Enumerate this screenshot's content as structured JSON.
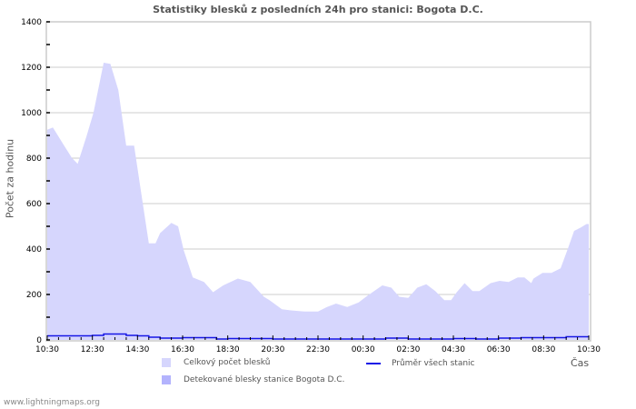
{
  "title": "Statistiky blesků z posledních 24h pro stanici: Bogota D.C.",
  "footer": "www.lightningmaps.org",
  "colors": {
    "total_fill": "#d6d6fd",
    "detected_fill": "#b3b3fd",
    "average_line": "#1515e6",
    "grid": "#cccccc",
    "axis": "#cccccc",
    "text": "#555555"
  },
  "legend": {
    "total": "Celkový počet blesků",
    "detected": "Detekované blesky stanice Bogota D.C.",
    "average": "Průměr všech stanic"
  },
  "chart_data": {
    "type": "area",
    "title": "Statistiky blesků z posledních 24h pro stanici: Bogota D.C.",
    "xlabel": "Čas",
    "ylabel": "Počet za hodinu",
    "ylim": [
      0,
      1400
    ],
    "yticks": [
      0,
      200,
      400,
      600,
      800,
      1000,
      1200,
      1400
    ],
    "xticks": [
      "10:30",
      "12:30",
      "14:30",
      "16:30",
      "18:30",
      "20:30",
      "22:30",
      "00:30",
      "02:30",
      "04:30",
      "06:30",
      "08:30",
      "10:30"
    ],
    "x_hours_span": 24,
    "grid": true,
    "legend_position": "bottom",
    "series": [
      {
        "name": "Celkový počet blesků",
        "type": "area",
        "x_hours": [
          0,
          0.25,
          0.75,
          1.1,
          1.35,
          1.75,
          2.05,
          2.5,
          2.8,
          3.15,
          3.5,
          3.85,
          4.15,
          4.5,
          4.8,
          5.0,
          5.5,
          5.8,
          6.05,
          6.45,
          6.95,
          7.35,
          7.8,
          8.45,
          9.0,
          9.6,
          9.85,
          10.4,
          10.8,
          11.4,
          12.0,
          12.4,
          12.8,
          13.3,
          13.8,
          14.2,
          14.85,
          15.25,
          15.6,
          16.0,
          16.4,
          16.8,
          17.2,
          17.6,
          17.9,
          18.15,
          18.5,
          18.85,
          19.15,
          19.65,
          20.05,
          20.45,
          20.85,
          21.15,
          21.45,
          21.55,
          21.95,
          22.35,
          22.75,
          23.05,
          23.35,
          23.65,
          23.9,
          24.0
        ],
        "values": [
          925,
          935,
          855,
          800,
          775,
          900,
          1000,
          1220,
          1215,
          1100,
          855,
          855,
          655,
          425,
          425,
          470,
          515,
          500,
          395,
          275,
          255,
          210,
          240,
          270,
          255,
          190,
          175,
          135,
          130,
          125,
          125,
          145,
          160,
          145,
          165,
          195,
          240,
          230,
          190,
          185,
          230,
          245,
          215,
          175,
          175,
          210,
          250,
          215,
          215,
          250,
          260,
          255,
          275,
          275,
          250,
          270,
          295,
          295,
          315,
          395,
          480,
          495,
          510,
          510
        ]
      },
      {
        "name": "Detekované blesky stanice Bogota D.C.",
        "type": "area",
        "x_hours": [
          0,
          24
        ],
        "values": [
          0,
          0
        ]
      },
      {
        "name": "Průměr všech stanic",
        "type": "step-line",
        "x_hours": [
          0,
          2,
          2.5,
          3,
          3.5,
          4,
          4.5,
          5,
          6,
          7.5,
          8,
          10,
          10.5,
          14,
          15,
          16,
          17,
          18,
          19,
          20,
          21,
          22,
          23,
          24
        ],
        "values": [
          18,
          20,
          26,
          26,
          20,
          18,
          12,
          8,
          10,
          4,
          6,
          4,
          4,
          4,
          8,
          4,
          4,
          6,
          4,
          8,
          10,
          10,
          14,
          14
        ]
      }
    ]
  }
}
